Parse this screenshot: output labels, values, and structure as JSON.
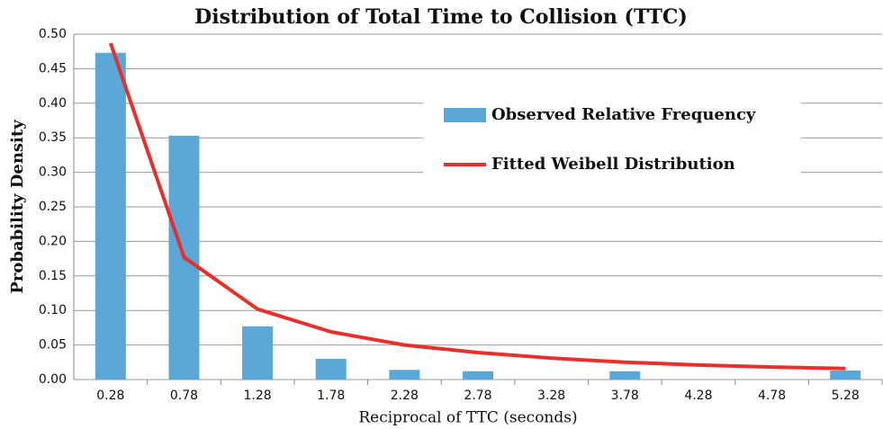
{
  "chart_data": {
    "type": "bar",
    "title": "Distribution of Total Time to Collision (TTC)",
    "x_label": "Reciprocal of TTC (seconds)",
    "y_label": "Probability Density",
    "categories": [
      "0.28",
      "0.78",
      "1.28",
      "1.78",
      "2.28",
      "2.78",
      "3.28",
      "3.78",
      "4.28",
      "4.78",
      "5.28"
    ],
    "series": [
      {
        "name": "Observed Relative Frequency",
        "type": "bar",
        "color": "#5aa7d8",
        "values": [
          0.473,
          0.353,
          0.077,
          0.03,
          0.014,
          0.012,
          0,
          0.012,
          0,
          0,
          0.013
        ]
      },
      {
        "name": "Fitted Weibell Distribution",
        "type": "line",
        "color": "#e8302a",
        "values": [
          0.487,
          0.177,
          0.102,
          0.069,
          0.05,
          0.039,
          0.031,
          0.025,
          0.021,
          0.018,
          0.016
        ]
      }
    ],
    "ylim": [
      0,
      0.5
    ],
    "yticks": [
      {
        "value": 0,
        "label": "0.00"
      },
      {
        "value": 0.05,
        "label": "0.05"
      },
      {
        "value": 0.1,
        "label": "0.10"
      },
      {
        "value": 0.15,
        "label": "0.15"
      },
      {
        "value": 0.2,
        "label": "0.20"
      },
      {
        "value": 0.25,
        "label": "0.25"
      },
      {
        "value": 0.3,
        "label": "0.30"
      },
      {
        "value": 0.35,
        "label": "0.35"
      },
      {
        "value": 0.4,
        "label": "0.40"
      },
      {
        "value": 0.45,
        "label": "0.45"
      },
      {
        "value": 0.5,
        "label": "0.50"
      }
    ],
    "grid": true
  }
}
